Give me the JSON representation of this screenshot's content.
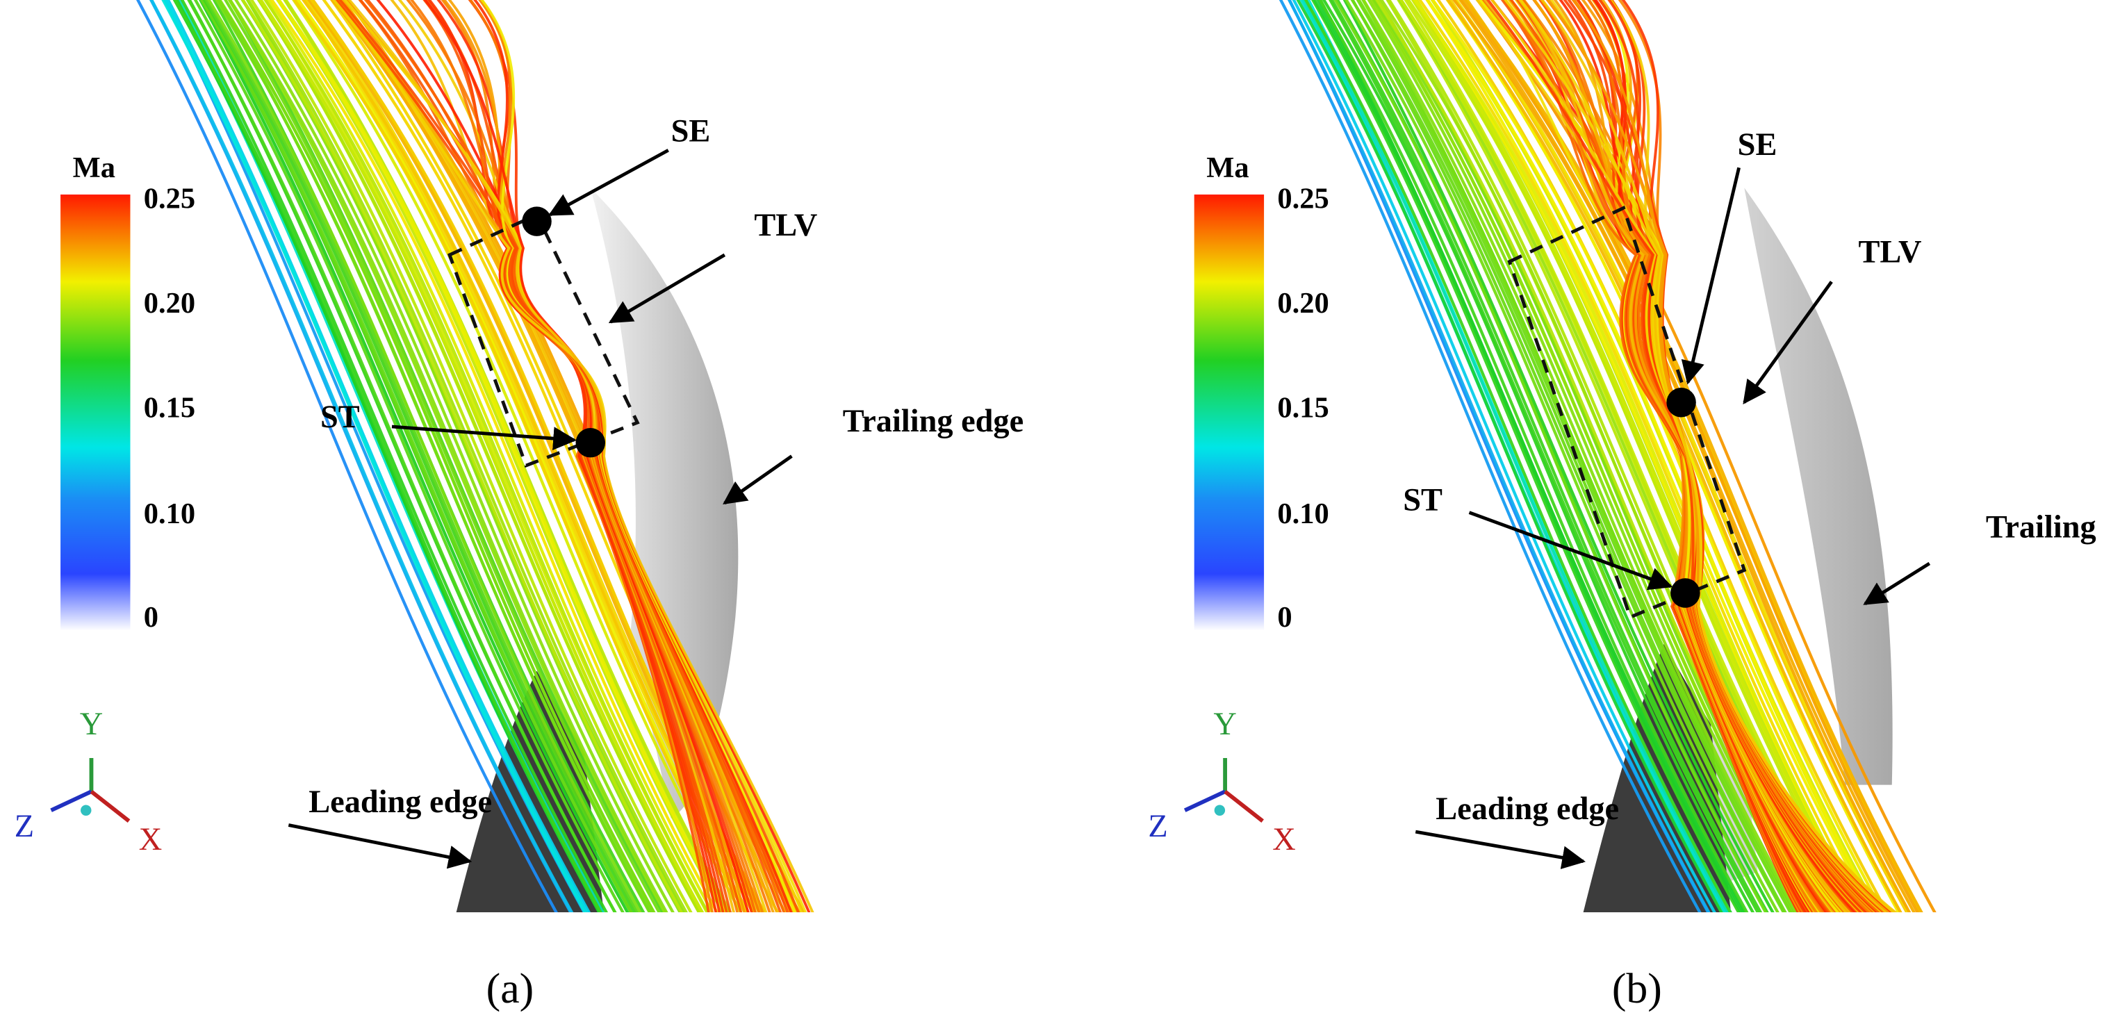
{
  "panels": [
    {
      "colorbar": {
        "title": "Ma",
        "labels": [
          "0.25",
          "0.20",
          "0.15",
          "0.10",
          "0"
        ]
      },
      "axes": {
        "y": "Y",
        "z": "Z",
        "x": "X"
      },
      "annotations": {
        "se": "SE",
        "tlv": "TLV",
        "st": "ST",
        "trailing_edge": "Trailing edge",
        "leading_edge": "Leading edge"
      },
      "caption": "(a)"
    },
    {
      "colorbar": {
        "title": "Ma",
        "labels": [
          "0.25",
          "0.20",
          "0.15",
          "0.10",
          "0"
        ]
      },
      "axes": {
        "y": "Y",
        "z": "Z",
        "x": "X"
      },
      "annotations": {
        "se": "SE",
        "tlv": "TLV",
        "st": "ST",
        "trailing_edge": "Trailing edge",
        "leading_edge": "Leading edge"
      },
      "caption": "(b)"
    }
  ]
}
